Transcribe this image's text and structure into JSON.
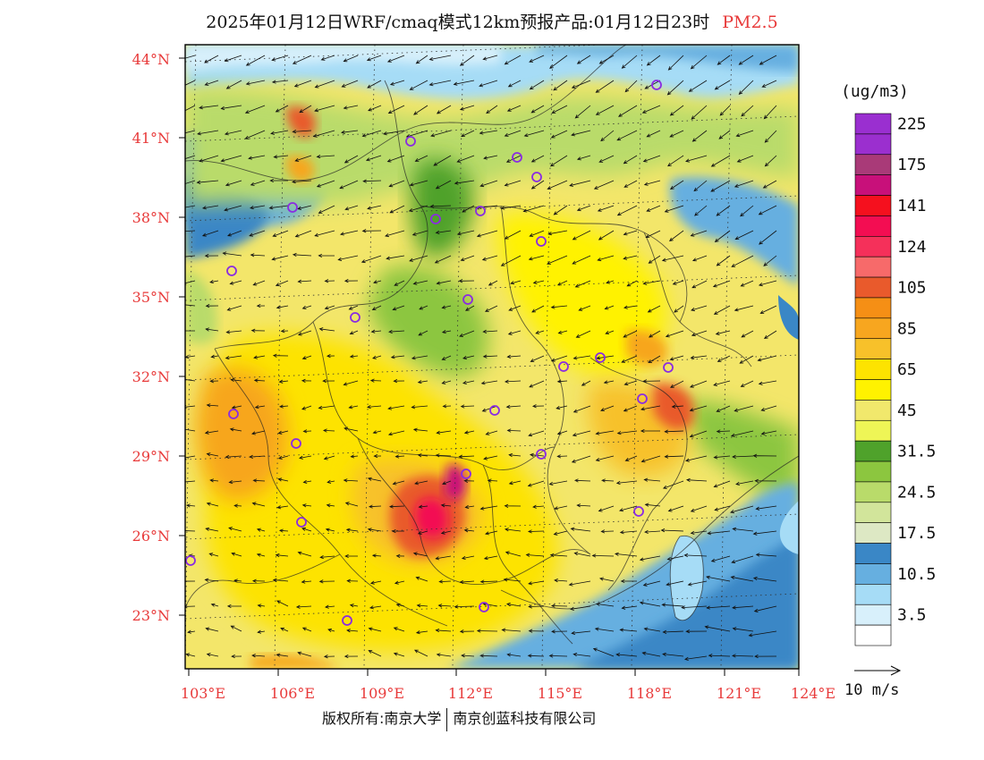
{
  "title": {
    "main": "2025年01月12日WRF/cmaq模式12km预报产品:01月12日23时",
    "pollutant": "PM2.5"
  },
  "legend": {
    "unit": "(ug/m3)",
    "levels": [
      {
        "label": "225",
        "color": "#9a2fd0"
      },
      {
        "label": "",
        "color": "#9b2fcf"
      },
      {
        "label": "175",
        "color": "#a93a78"
      },
      {
        "label": "",
        "color": "#c8107a"
      },
      {
        "label": "141",
        "color": "#f5101e"
      },
      {
        "label": "",
        "color": "#f30d52"
      },
      {
        "label": "124",
        "color": "#f5305a"
      },
      {
        "label": "",
        "color": "#f76a6a"
      },
      {
        "label": "105",
        "color": "#e95a2c"
      },
      {
        "label": "",
        "color": "#f58f15"
      },
      {
        "label": "85",
        "color": "#f7a61f"
      },
      {
        "label": "",
        "color": "#f7c12a"
      },
      {
        "label": "65",
        "color": "#fde300"
      },
      {
        "label": "",
        "color": "#fff200"
      },
      {
        "label": "45",
        "color": "#f1e86c"
      },
      {
        "label": "",
        "color": "#eef556"
      },
      {
        "label": "31.5",
        "color": "#4fa22b"
      },
      {
        "label": "",
        "color": "#8cc63f"
      },
      {
        "label": "24.5",
        "color": "#b9db6a"
      },
      {
        "label": "",
        "color": "#d2e59b"
      },
      {
        "label": "17.5",
        "color": "#dde8c4"
      },
      {
        "label": "",
        "color": "#3a87c6"
      },
      {
        "label": "10.5",
        "color": "#66afe0"
      },
      {
        "label": "",
        "color": "#a6dcf6"
      },
      {
        "label": "3.5",
        "color": "#d8f0fb"
      },
      {
        "label": "",
        "color": "#ffffff"
      }
    ]
  },
  "axes": {
    "lat_labels": [
      "44°N",
      "41°N",
      "38°N",
      "35°N",
      "32°N",
      "29°N",
      "26°N",
      "23°N"
    ],
    "lon_labels": [
      "103°E",
      "106°E",
      "109°E",
      "112°E",
      "115°E",
      "118°E",
      "121°E",
      "124°E"
    ],
    "label_color": "#e83a3a"
  },
  "vector_scale": {
    "label": "10 m/s"
  },
  "copyright": {
    "left": "版权所有:南京大学",
    "right": "南京创蓝科技有限公司"
  },
  "colors": {
    "city_marker": "#8a2be2"
  }
}
